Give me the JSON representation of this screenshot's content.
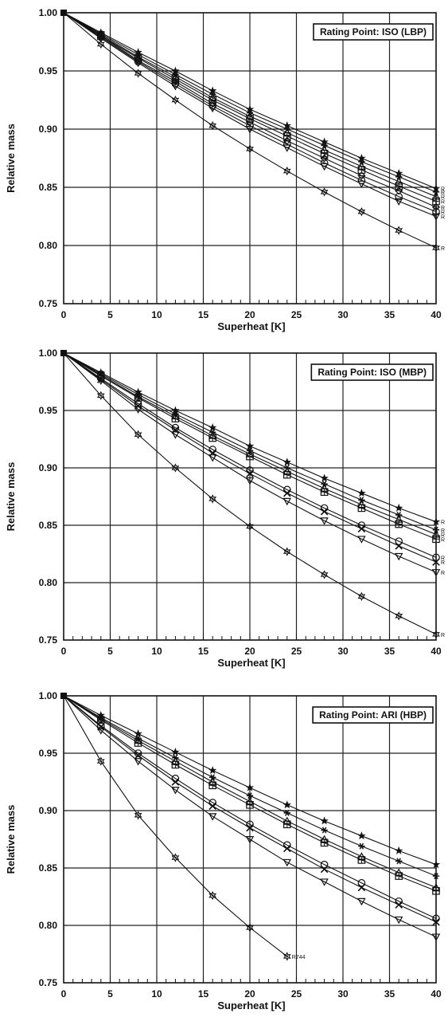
{
  "chart_data": [
    {
      "type": "line",
      "title": "Rating Point: ISO (LBP)",
      "xlabel": "Superheat  [K]",
      "ylabel": "Relative mass",
      "xlim": [
        0,
        40
      ],
      "ylim": [
        0.75,
        1.0
      ],
      "x_ticks": [
        "0",
        "5",
        "10",
        "15",
        "20",
        "25",
        "30",
        "35",
        "40"
      ],
      "y_ticks": [
        "0.75",
        "0.80",
        "0.85",
        "0.90",
        "0.95",
        "1.00"
      ],
      "grid": true,
      "legend_position": "top-right",
      "x": [
        0,
        4,
        8,
        12,
        16,
        20,
        24,
        28,
        32,
        36,
        40
      ],
      "series": [
        {
          "marker": "star",
          "end_label": "R",
          "values": [
            1.0,
            0.983,
            0.966,
            0.95,
            0.933,
            0.917,
            0.903,
            0.889,
            0.875,
            0.862,
            0.849
          ]
        },
        {
          "marker": "asterisk",
          "end_label": "R",
          "values": [
            1.0,
            0.982,
            0.964,
            0.947,
            0.93,
            0.914,
            0.9,
            0.886,
            0.872,
            0.859,
            0.846
          ]
        },
        {
          "marker": "triangle-up",
          "end_label": "R",
          "values": [
            1.0,
            0.981,
            0.962,
            0.945,
            0.927,
            0.911,
            0.897,
            0.882,
            0.868,
            0.855,
            0.842
          ]
        },
        {
          "marker": "square-cross",
          "end_label": "R",
          "values": [
            1.0,
            0.98,
            0.961,
            0.943,
            0.925,
            0.909,
            0.894,
            0.879,
            0.865,
            0.851,
            0.838
          ]
        },
        {
          "marker": "diamond",
          "end_label": "R",
          "values": [
            1.0,
            0.98,
            0.959,
            0.941,
            0.922,
            0.906,
            0.89,
            0.875,
            0.86,
            0.847,
            0.833
          ]
        },
        {
          "marker": "circle",
          "end_label": "R",
          "values": [
            1.0,
            0.979,
            0.958,
            0.939,
            0.92,
            0.903,
            0.887,
            0.871,
            0.856,
            0.842,
            0.829
          ]
        },
        {
          "marker": "triangle-down",
          "end_label": "R",
          "values": [
            1.0,
            0.978,
            0.957,
            0.937,
            0.918,
            0.9,
            0.884,
            0.868,
            0.853,
            0.838,
            0.825
          ]
        },
        {
          "marker": "star6",
          "end_label": "R",
          "values": [
            1.0,
            0.973,
            0.948,
            0.925,
            0.903,
            0.883,
            0.864,
            0.846,
            0.829,
            0.813,
            0.798
          ]
        }
      ]
    },
    {
      "type": "line",
      "title": "Rating Point: ISO (MBP)",
      "xlabel": "Superheat  [K]",
      "ylabel": "Relative mass",
      "xlim": [
        0,
        40
      ],
      "ylim": [
        0.75,
        1.0
      ],
      "x_ticks": [
        "0",
        "5",
        "10",
        "15",
        "20",
        "25",
        "30",
        "35",
        "40"
      ],
      "y_ticks": [
        "0.75",
        "0.80",
        "0.85",
        "0.90",
        "0.95",
        "1.00"
      ],
      "grid": true,
      "legend_position": "top-right",
      "x": [
        0,
        4,
        8,
        12,
        16,
        20,
        24,
        28,
        32,
        36,
        40
      ],
      "series": [
        {
          "marker": "star",
          "end_label": "R",
          "values": [
            1.0,
            0.983,
            0.966,
            0.95,
            0.935,
            0.919,
            0.905,
            0.891,
            0.878,
            0.865,
            0.853
          ]
        },
        {
          "marker": "asterisk",
          "end_label": "R",
          "values": [
            1.0,
            0.982,
            0.964,
            0.947,
            0.931,
            0.915,
            0.9,
            0.886,
            0.872,
            0.859,
            0.846
          ]
        },
        {
          "marker": "triangle-up",
          "end_label": "R",
          "values": [
            1.0,
            0.981,
            0.962,
            0.945,
            0.928,
            0.912,
            0.897,
            0.882,
            0.868,
            0.855,
            0.842
          ]
        },
        {
          "marker": "square-cross",
          "end_label": "R",
          "values": [
            1.0,
            0.98,
            0.961,
            0.943,
            0.926,
            0.91,
            0.894,
            0.879,
            0.865,
            0.851,
            0.838
          ]
        },
        {
          "marker": "circle",
          "end_label": "R",
          "values": [
            1.0,
            0.978,
            0.956,
            0.935,
            0.916,
            0.898,
            0.881,
            0.865,
            0.85,
            0.836,
            0.822
          ]
        },
        {
          "marker": "x",
          "end_label": "R",
          "values": [
            1.0,
            0.977,
            0.954,
            0.933,
            0.913,
            0.895,
            0.878,
            0.862,
            0.847,
            0.832,
            0.818
          ]
        },
        {
          "marker": "triangle-down",
          "end_label": "R",
          "values": [
            1.0,
            0.976,
            0.951,
            0.929,
            0.909,
            0.889,
            0.871,
            0.854,
            0.838,
            0.823,
            0.809
          ]
        },
        {
          "marker": "star6",
          "end_label": "R",
          "values": [
            1.0,
            0.963,
            0.929,
            0.9,
            0.873,
            0.849,
            0.827,
            0.807,
            0.788,
            0.771,
            0.755
          ]
        }
      ]
    },
    {
      "type": "line",
      "title": "Rating Point: ARI (HBP)",
      "xlabel": "Superheat  [K]",
      "ylabel": "Relative mass",
      "xlim": [
        0,
        40
      ],
      "ylim": [
        0.75,
        1.0
      ],
      "x_ticks": [
        "0",
        "5",
        "10",
        "15",
        "20",
        "25",
        "30",
        "35",
        "40"
      ],
      "y_ticks": [
        "0.75",
        "0.80",
        "0.85",
        "0.90",
        "0.95",
        "1.00"
      ],
      "grid": true,
      "legend_position": "top-right",
      "x": [
        0,
        4,
        8,
        12,
        16,
        20,
        24,
        28,
        32,
        36,
        40
      ],
      "series": [
        {
          "marker": "star",
          "values": [
            1.0,
            0.983,
            0.967,
            0.951,
            0.935,
            0.92,
            0.905,
            0.891,
            0.878,
            0.865,
            0.853
          ]
        },
        {
          "marker": "asterisk",
          "values": [
            1.0,
            0.981,
            0.963,
            0.946,
            0.929,
            0.913,
            0.898,
            0.883,
            0.869,
            0.856,
            0.843
          ]
        },
        {
          "marker": "triangle-up",
          "values": [
            1.0,
            0.98,
            0.961,
            0.943,
            0.925,
            0.908,
            0.891,
            0.875,
            0.86,
            0.846,
            0.833
          ]
        },
        {
          "marker": "square-cross",
          "values": [
            1.0,
            0.979,
            0.959,
            0.94,
            0.922,
            0.905,
            0.888,
            0.872,
            0.857,
            0.843,
            0.83
          ]
        },
        {
          "marker": "circle",
          "values": [
            1.0,
            0.974,
            0.95,
            0.928,
            0.907,
            0.888,
            0.87,
            0.853,
            0.837,
            0.821,
            0.806
          ]
        },
        {
          "marker": "x",
          "values": [
            1.0,
            0.973,
            0.948,
            0.925,
            0.904,
            0.885,
            0.867,
            0.849,
            0.833,
            0.818,
            0.803
          ]
        },
        {
          "marker": "triangle-down",
          "values": [
            1.0,
            0.97,
            0.943,
            0.918,
            0.895,
            0.875,
            0.855,
            0.838,
            0.821,
            0.805,
            0.79
          ]
        },
        {
          "marker": "star6",
          "end_label": "R744",
          "x": [
            0,
            4,
            8,
            12,
            16,
            20,
            24
          ],
          "values": [
            1.0,
            0.943,
            0.896,
            0.859,
            0.826,
            0.798,
            0.773
          ]
        }
      ]
    }
  ]
}
